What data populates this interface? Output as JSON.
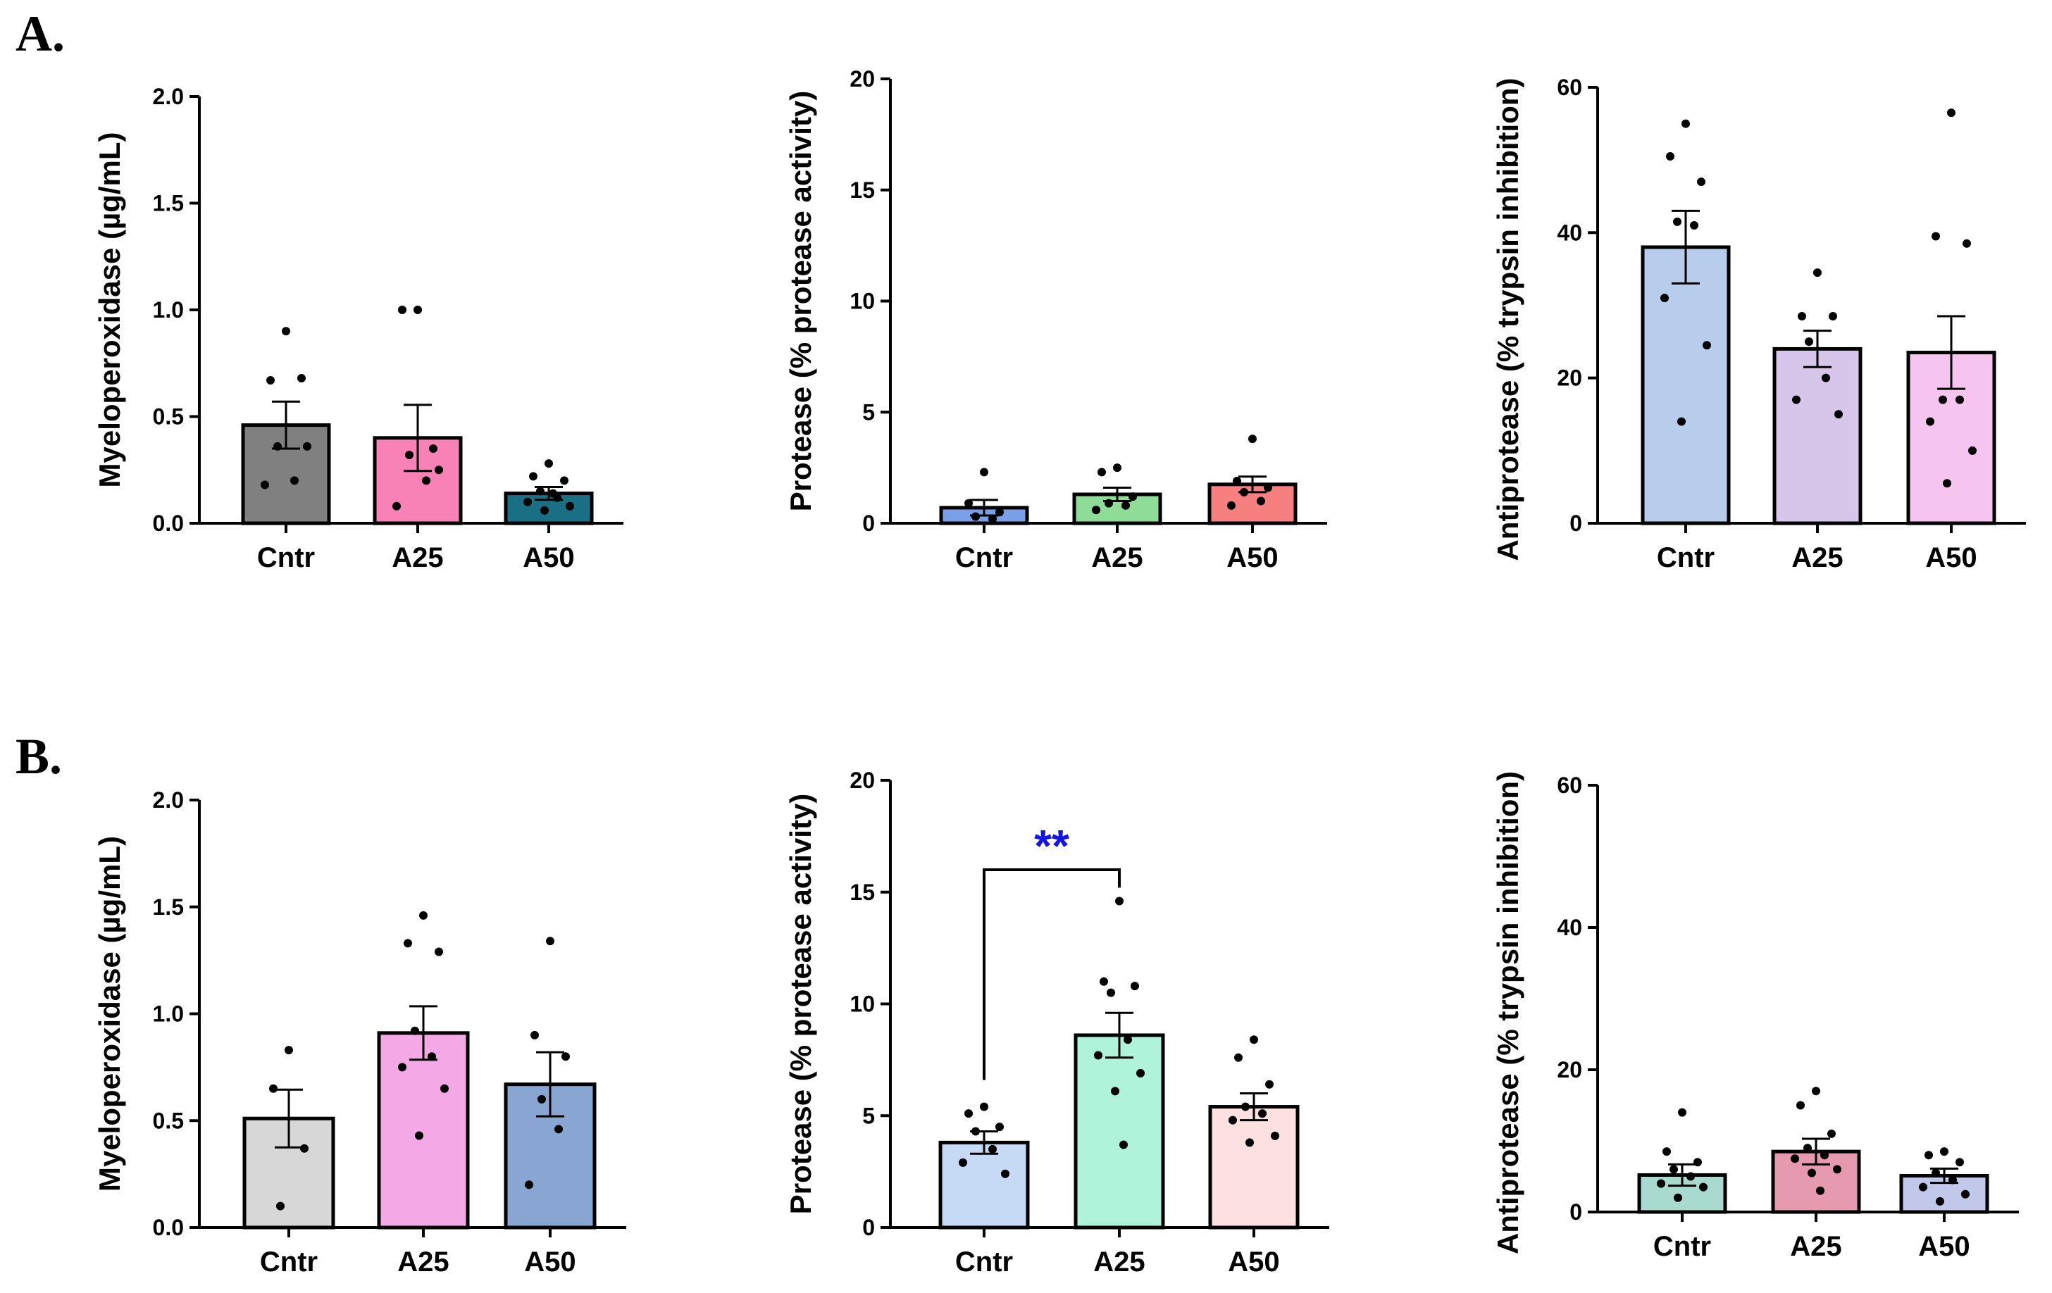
{
  "figure": {
    "panel_labels": [
      "A.",
      "B."
    ],
    "colors": {
      "axis": "#000000",
      "point": "#000000",
      "significance": "#1414e6"
    }
  },
  "chart_data": [
    {
      "type": "bar",
      "panel": "A.",
      "ylabel": "Myeloperoxidase (µg/mL)",
      "ylim": [
        0,
        2.0
      ],
      "yticks": [
        "0.0",
        "0.5",
        "1.0",
        "1.5",
        "2.0"
      ],
      "categories": [
        "Cntr",
        "A25",
        "A50"
      ],
      "values": [
        0.46,
        0.4,
        0.14
      ],
      "sem": [
        0.11,
        0.155,
        0.03
      ],
      "colors": [
        "#808080",
        "#f882b6",
        "#1a6f84"
      ],
      "points": [
        [
          0.9,
          0.67,
          0.68,
          0.36,
          0.2,
          0.18,
          0.36
        ],
        [
          1.0,
          1.0,
          0.35,
          0.32,
          0.2,
          0.08,
          0.25
        ],
        [
          0.28,
          0.22,
          0.2,
          0.15,
          0.12,
          0.1,
          0.08,
          0.06,
          0.14
        ]
      ]
    },
    {
      "type": "bar",
      "panel": "A.",
      "ylabel": "Protease (% protease activity)",
      "ylim": [
        0,
        20
      ],
      "yticks": [
        "0",
        "5",
        "10",
        "15",
        "20"
      ],
      "categories": [
        "Cntr",
        "A25",
        "A50"
      ],
      "values": [
        0.7,
        1.3,
        1.75
      ],
      "sem": [
        0.35,
        0.3,
        0.35
      ],
      "colors": [
        "#7b9fe6",
        "#8fdc98",
        "#f68080"
      ],
      "points": [
        [
          2.3,
          0.9,
          0.5,
          0.3,
          0.2
        ],
        [
          2.5,
          2.3,
          1.2,
          0.9,
          0.8,
          0.6
        ],
        [
          3.8,
          1.9,
          1.6,
          1.4,
          1.0,
          0.8
        ]
      ]
    },
    {
      "type": "bar",
      "panel": "A.",
      "ylabel": "Antiprotease (% trypsin inhibition)",
      "ylim": [
        0,
        60
      ],
      "yticks": [
        "0",
        "20",
        "40",
        "60"
      ],
      "categories": [
        "Cntr",
        "A25",
        "A50"
      ],
      "values": [
        38,
        24,
        23.5
      ],
      "sem": [
        5,
        2.5,
        5
      ],
      "colors": [
        "#b8cdeb",
        "#d5c6ea",
        "#f5c4ef"
      ],
      "points": [
        [
          55,
          50.5,
          47,
          41.5,
          41,
          31,
          24.5,
          14
        ],
        [
          34.5,
          28.5,
          28.5,
          25,
          20,
          17,
          15
        ],
        [
          56.5,
          39.5,
          38.5,
          17,
          17,
          14,
          10,
          5.5
        ]
      ]
    },
    {
      "type": "bar",
      "panel": "B.",
      "ylabel": "Myeloperoxidase (µg/mL)",
      "ylim": [
        0,
        2.0
      ],
      "yticks": [
        "0.0",
        "0.5",
        "1.0",
        "1.5",
        "2.0"
      ],
      "categories": [
        "Cntr",
        "A25",
        "A50"
      ],
      "values": [
        0.51,
        0.91,
        0.67
      ],
      "sem": [
        0.135,
        0.125,
        0.15
      ],
      "colors": [
        "#d7d7d7",
        "#f4a8e6",
        "#89a6d2"
      ],
      "points": [
        [
          0.83,
          0.65,
          0.37,
          0.1
        ],
        [
          1.46,
          1.33,
          1.29,
          0.92,
          0.8,
          0.75,
          0.65,
          0.43
        ],
        [
          1.34,
          0.9,
          0.8,
          0.6,
          0.46,
          0.2
        ]
      ]
    },
    {
      "type": "bar",
      "panel": "B.",
      "ylabel": "Protease (% protease activity)",
      "ylim": [
        0,
        20
      ],
      "yticks": [
        "0",
        "5",
        "10",
        "15",
        "20"
      ],
      "categories": [
        "Cntr",
        "A25",
        "A50"
      ],
      "values": [
        3.8,
        8.6,
        5.4
      ],
      "sem": [
        0.5,
        1.0,
        0.6
      ],
      "colors": [
        "#c6d9f5",
        "#b0f3db",
        "#fde0e0"
      ],
      "points": [
        [
          5.4,
          5.1,
          4.5,
          4.3,
          3.5,
          2.9,
          2.4
        ],
        [
          14.6,
          11,
          10.8,
          10.5,
          8.4,
          7.7,
          6.9,
          6.1,
          3.7
        ],
        [
          8.4,
          7.6,
          6.4,
          5.4,
          5.1,
          4.8,
          4.1,
          3.8
        ]
      ],
      "significance": {
        "label": "**",
        "between": [
          "Cntr",
          "A25"
        ]
      }
    },
    {
      "type": "bar",
      "panel": "B.",
      "ylabel": "Antiprotease (% trypsin inhibition)",
      "ylim": [
        0,
        60
      ],
      "yticks": [
        "0",
        "20",
        "40",
        "60"
      ],
      "categories": [
        "Cntr",
        "A25",
        "A50"
      ],
      "values": [
        5.2,
        8.5,
        5.1
      ],
      "sem": [
        1.5,
        1.8,
        1.0
      ],
      "colors": [
        "#a8dad0",
        "#e69ab0",
        "#c2c8ea"
      ],
      "points": [
        [
          14,
          8.5,
          7,
          6,
          5,
          4,
          3.5,
          2
        ],
        [
          17,
          15,
          11,
          9,
          8,
          7.5,
          6,
          5.5,
          3
        ],
        [
          8.5,
          8,
          7,
          5.5,
          4.5,
          3.5,
          2.5,
          1.5
        ]
      ]
    }
  ]
}
